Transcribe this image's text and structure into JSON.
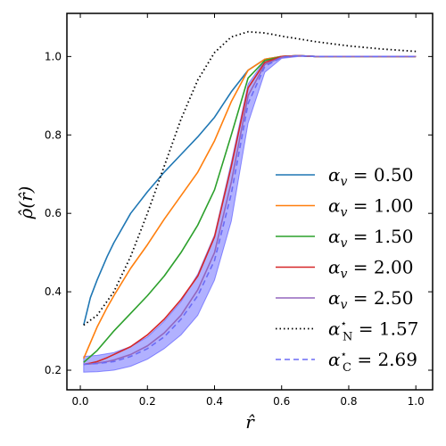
{
  "chart_data": {
    "type": "line",
    "xlabel": "r̂",
    "ylabel": "ρ̂(r̂)",
    "xlim": [
      -0.04,
      1.05
    ],
    "ylim": [
      0.15,
      1.11
    ],
    "x_ticks": [
      0.0,
      0.2,
      0.4,
      0.6,
      0.8,
      1.0
    ],
    "x_tick_labels": [
      "0.0",
      "0.2",
      "0.4",
      "0.6",
      "0.8",
      "1.0"
    ],
    "y_ticks": [
      0.2,
      0.4,
      0.6,
      0.8,
      1.0
    ],
    "y_tick_labels": [
      "0.2",
      "0.4",
      "0.6",
      "0.8",
      "1.0"
    ],
    "grid": false,
    "legend_position": "lower-right",
    "series": [
      {
        "name": "α_v = 0.50",
        "legend_main": "α",
        "legend_sub": "v",
        "legend_value": " = 0.50",
        "color": "#1f77b4",
        "style": "solid",
        "x": [
          0.01,
          0.03,
          0.05,
          0.08,
          0.1,
          0.15,
          0.2,
          0.25,
          0.3,
          0.35,
          0.4,
          0.45,
          0.5,
          0.55,
          0.6,
          0.65,
          0.7,
          0.8,
          0.9,
          1.0
        ],
        "y": [
          0.315,
          0.385,
          0.43,
          0.49,
          0.525,
          0.6,
          0.655,
          0.705,
          0.75,
          0.795,
          0.845,
          0.91,
          0.965,
          0.993,
          1.0,
          1.002,
          1.0,
          1.0,
          1.0,
          1.0
        ]
      },
      {
        "name": "α_v = 1.00",
        "legend_main": "α",
        "legend_sub": "v",
        "legend_value": " = 1.00",
        "color": "#ff7f0e",
        "style": "solid",
        "x": [
          0.01,
          0.03,
          0.05,
          0.08,
          0.1,
          0.15,
          0.2,
          0.25,
          0.3,
          0.35,
          0.4,
          0.45,
          0.5,
          0.55,
          0.6,
          0.65,
          0.7,
          0.8,
          0.9,
          1.0
        ],
        "y": [
          0.23,
          0.27,
          0.31,
          0.36,
          0.39,
          0.46,
          0.52,
          0.585,
          0.645,
          0.705,
          0.785,
          0.885,
          0.965,
          0.993,
          1.0,
          1.002,
          1.0,
          1.0,
          1.0,
          1.0
        ]
      },
      {
        "name": "α_v = 1.50",
        "legend_main": "α",
        "legend_sub": "v",
        "legend_value": " = 1.50",
        "color": "#2ca02c",
        "style": "solid",
        "x": [
          0.01,
          0.03,
          0.05,
          0.08,
          0.1,
          0.15,
          0.2,
          0.25,
          0.3,
          0.35,
          0.4,
          0.45,
          0.5,
          0.55,
          0.6,
          0.65,
          0.7,
          0.8,
          0.9,
          1.0
        ],
        "y": [
          0.22,
          0.235,
          0.25,
          0.28,
          0.3,
          0.345,
          0.39,
          0.44,
          0.5,
          0.57,
          0.66,
          0.8,
          0.945,
          0.99,
          1.0,
          1.002,
          1.0,
          1.0,
          1.0,
          1.0
        ]
      },
      {
        "name": "α_v = 2.00",
        "legend_main": "α",
        "legend_sub": "v",
        "legend_value": " = 2.00",
        "color": "#d62728",
        "style": "solid",
        "x": [
          0.01,
          0.03,
          0.05,
          0.08,
          0.1,
          0.15,
          0.2,
          0.25,
          0.3,
          0.35,
          0.4,
          0.45,
          0.5,
          0.55,
          0.6,
          0.65,
          0.7,
          0.8,
          0.9,
          1.0
        ],
        "y": [
          0.215,
          0.218,
          0.222,
          0.232,
          0.24,
          0.26,
          0.29,
          0.33,
          0.38,
          0.44,
          0.54,
          0.72,
          0.92,
          0.985,
          1.0,
          1.002,
          1.0,
          1.0,
          1.0,
          1.0
        ]
      },
      {
        "name": "α_v = 2.50",
        "legend_main": "α",
        "legend_sub": "v",
        "legend_value": " = 2.50",
        "color": "#9467bd",
        "style": "solid",
        "x": [
          0.01,
          0.03,
          0.05,
          0.08,
          0.1,
          0.15,
          0.2,
          0.25,
          0.3,
          0.35,
          0.4,
          0.45,
          0.5,
          0.55,
          0.6,
          0.65,
          0.7,
          0.8,
          0.9,
          1.0
        ],
        "y": [
          0.215,
          0.216,
          0.218,
          0.222,
          0.226,
          0.24,
          0.262,
          0.295,
          0.34,
          0.405,
          0.5,
          0.68,
          0.9,
          0.98,
          0.998,
          1.002,
          1.0,
          1.0,
          1.0,
          1.0
        ]
      },
      {
        "name": "α*_N = 1.57",
        "legend_main": "α",
        "legend_sup": "⋆",
        "legend_sub": "N",
        "legend_value": " = 1.57",
        "color": "#000000",
        "style": "dotted",
        "x": [
          0.01,
          0.05,
          0.1,
          0.15,
          0.2,
          0.25,
          0.3,
          0.35,
          0.4,
          0.45,
          0.5,
          0.55,
          0.6,
          0.7,
          0.8,
          0.9,
          1.0
        ],
        "y": [
          0.315,
          0.34,
          0.4,
          0.49,
          0.6,
          0.72,
          0.84,
          0.94,
          1.01,
          1.05,
          1.063,
          1.06,
          1.052,
          1.038,
          1.027,
          1.019,
          1.013
        ]
      },
      {
        "name": "α*_C = 2.69",
        "legend_main": "α",
        "legend_sup": "⋆",
        "legend_sub": "C",
        "legend_value": " = 2.69",
        "color": "#6b6bf5",
        "style": "dashed",
        "x": [
          0.01,
          0.05,
          0.1,
          0.15,
          0.2,
          0.25,
          0.3,
          0.35,
          0.4,
          0.45,
          0.5,
          0.55,
          0.6,
          0.65,
          0.7,
          0.8,
          0.9,
          1.0
        ],
        "y": [
          0.215,
          0.217,
          0.222,
          0.235,
          0.255,
          0.285,
          0.33,
          0.39,
          0.48,
          0.65,
          0.88,
          0.975,
          0.998,
          1.002,
          1.0,
          1.0,
          1.0,
          1.0
        ]
      }
    ],
    "band": {
      "color": "#3333ff",
      "opacity": 0.38,
      "x": [
        0.01,
        0.05,
        0.1,
        0.15,
        0.2,
        0.25,
        0.3,
        0.35,
        0.4,
        0.45,
        0.5,
        0.55,
        0.6,
        0.65,
        0.7,
        0.8,
        0.9,
        1.0
      ],
      "upper": [
        0.235,
        0.238,
        0.245,
        0.26,
        0.285,
        0.325,
        0.375,
        0.445,
        0.545,
        0.73,
        0.93,
        0.99,
        1.0,
        1.002,
        1.0,
        1.0,
        1.0,
        1.0
      ],
      "lower": [
        0.195,
        0.196,
        0.2,
        0.21,
        0.228,
        0.255,
        0.29,
        0.34,
        0.43,
        0.58,
        0.83,
        0.96,
        0.995,
        1.0,
        1.0,
        1.0,
        1.0,
        1.0
      ]
    }
  }
}
